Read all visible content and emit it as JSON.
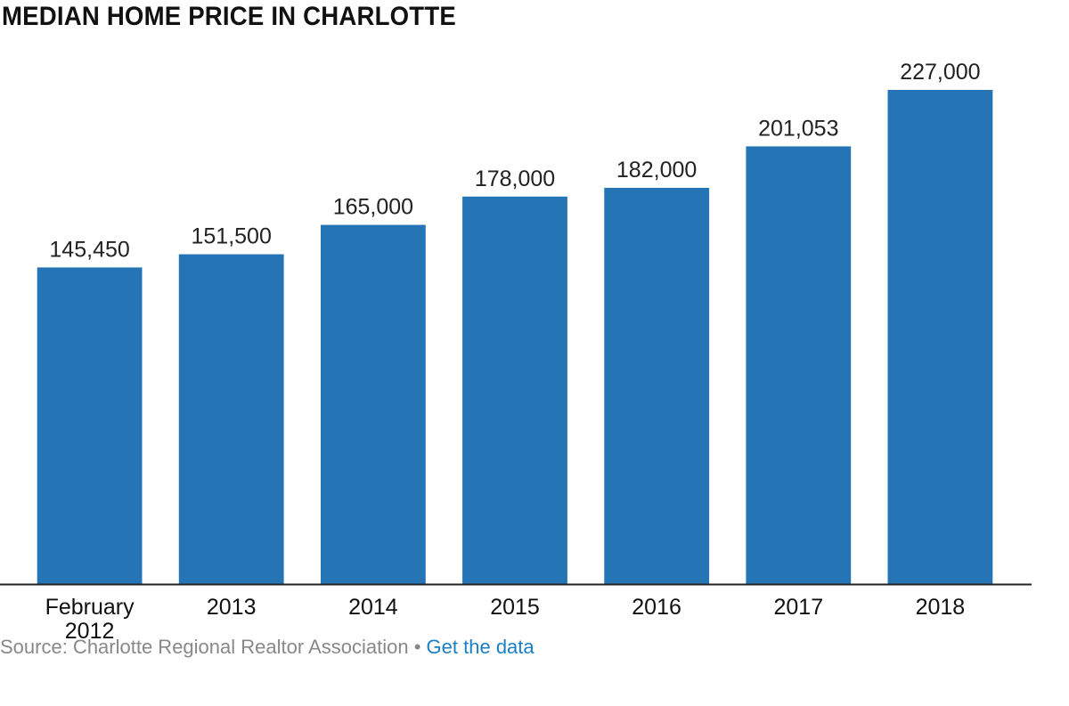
{
  "chart_data": {
    "type": "bar",
    "title": "MEDIAN HOME PRICE IN CHARLOTTE",
    "categories": [
      [
        "February",
        "2012"
      ],
      [
        "2013"
      ],
      [
        "2014"
      ],
      [
        "2015"
      ],
      [
        "2016"
      ],
      [
        "2017"
      ],
      [
        "2018"
      ]
    ],
    "values": [
      145450,
      151500,
      165000,
      178000,
      182000,
      201053,
      227000
    ],
    "value_labels": [
      "145,450",
      "151,500",
      "165,000",
      "178,000",
      "182,000",
      "201,053",
      "227,000"
    ],
    "xlabel": "",
    "ylabel": "",
    "ylim": [
      0,
      227000
    ],
    "grid": false,
    "legend": "none",
    "bar_color": "#2574b5",
    "axis_color": "#222222"
  },
  "source": {
    "text": "Source: Charlotte Regional Realtor Association",
    "separator": "•",
    "link_label": "Get the data",
    "link_color": "#1a7fc4"
  }
}
